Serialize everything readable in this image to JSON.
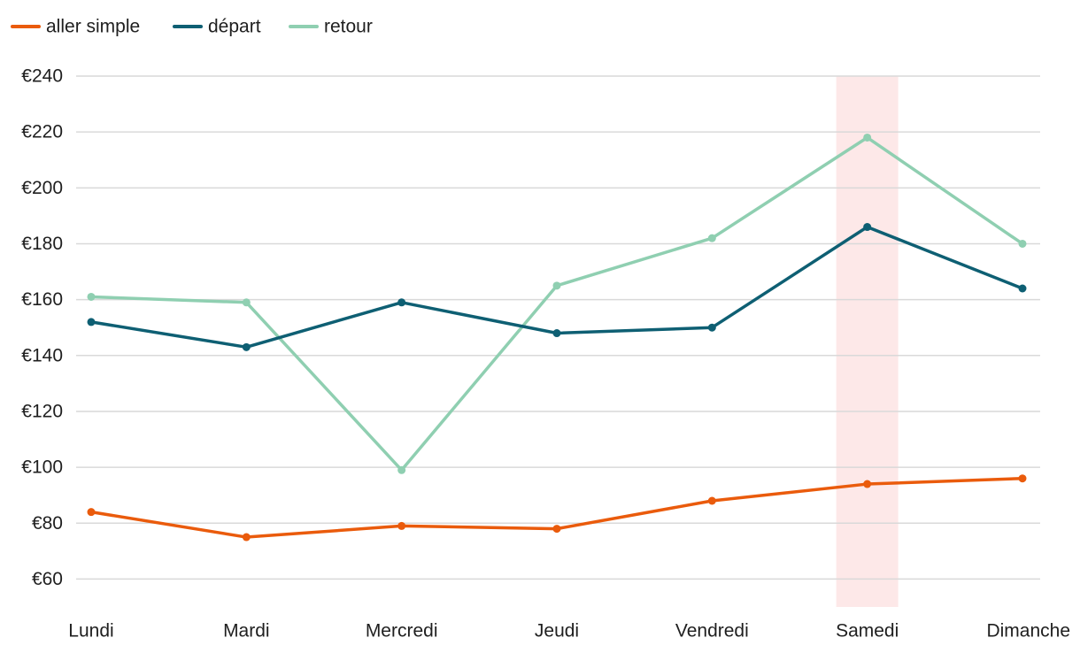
{
  "chart_data": {
    "type": "line",
    "categories": [
      "Lundi",
      "Mardi",
      "Mercredi",
      "Jeudi",
      "Vendredi",
      "Samedi",
      "Dimanche"
    ],
    "series": [
      {
        "name": "aller simple",
        "color": "#ea5b0c",
        "values": [
          84,
          75,
          79,
          78,
          88,
          94,
          96
        ]
      },
      {
        "name": "départ",
        "color": "#0e5f73",
        "values": [
          152,
          143,
          159,
          148,
          150,
          186,
          164
        ]
      },
      {
        "name": "retour",
        "color": "#8fcfb1",
        "values": [
          161,
          159,
          99,
          165,
          182,
          218,
          180
        ]
      }
    ],
    "y_ticks": [
      60,
      80,
      100,
      120,
      140,
      160,
      180,
      200,
      220,
      240
    ],
    "y_tick_labels": [
      "€60",
      "€80",
      "€100",
      "€120",
      "€140",
      "€160",
      "€180",
      "€200",
      "€220",
      "€240"
    ],
    "ylim": [
      50,
      240
    ],
    "grid": true,
    "legend_position": "top-left",
    "highlight": {
      "category": "Samedi",
      "color": "#fde8e8"
    },
    "gridline_color": "#d9d9d9"
  }
}
